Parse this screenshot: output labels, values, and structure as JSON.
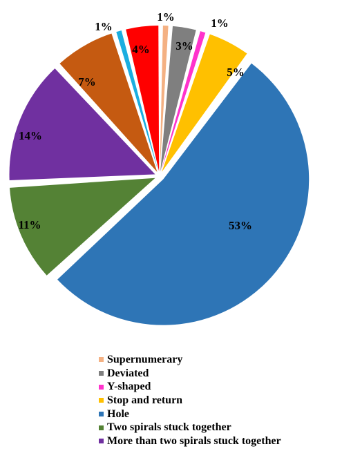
{
  "chart_data": {
    "type": "pie",
    "slices": [
      {
        "label": "Supernumerary",
        "value": 1,
        "data_label": "1%",
        "color": "#F4B183",
        "legend": true
      },
      {
        "label": "Deviated",
        "value": 3,
        "data_label": "3%",
        "color": "#7F7F7F",
        "legend": true
      },
      {
        "label": "Y-shaped",
        "value": 1,
        "data_label": "1%",
        "color": "#FF33CC",
        "legend": true
      },
      {
        "label": "Stop and return",
        "value": 5,
        "data_label": "5%",
        "color": "#FFC000",
        "legend": true
      },
      {
        "label": "Hole",
        "value": 53,
        "data_label": "53%",
        "color": "#2E75B6",
        "legend": true
      },
      {
        "label": "Two spirals stuck together",
        "value": 11,
        "data_label": "11%",
        "color": "#548235",
        "legend": true
      },
      {
        "label": "More than two spirals stuck together",
        "value": 14,
        "data_label": "14%",
        "color": "#7030A0",
        "legend": true
      },
      {
        "label": "",
        "value": 7,
        "data_label": "7%",
        "color": "#C55A11",
        "legend": false
      },
      {
        "label": "",
        "value": 1,
        "data_label": "1%",
        "color": "#1AAEE0",
        "legend": false
      },
      {
        "label": "",
        "value": 4,
        "data_label": "4%",
        "color": "#FF0000",
        "legend": false
      }
    ],
    "legend_position": "bottom"
  }
}
